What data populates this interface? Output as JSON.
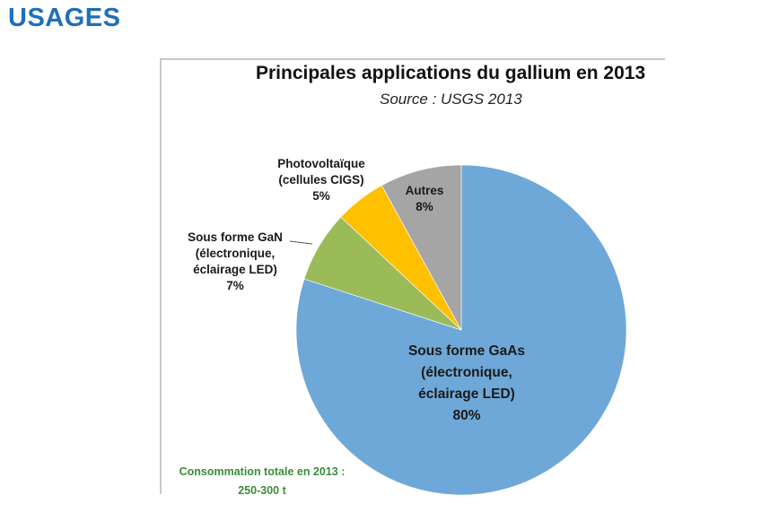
{
  "page": {
    "heading": "USAGES"
  },
  "chart_data": {
    "type": "pie",
    "title": "Principales applications du gallium en 2013",
    "subtitle": "Source : USGS 2013",
    "slices": [
      {
        "name": "sous-forme-gaas",
        "label_lines": [
          "Sous forme GaAs",
          "(électronique,",
          "éclairage LED)"
        ],
        "value": 80,
        "value_label": "80%",
        "color": "#6ea8d8"
      },
      {
        "name": "sous-forme-gan",
        "label_lines": [
          "Sous forme GaN",
          "(électronique,",
          "éclairage LED)"
        ],
        "value": 7,
        "value_label": "7%",
        "color": "#9bbb59"
      },
      {
        "name": "photovoltaique",
        "label_lines": [
          "Photovoltaïque",
          "(cellules CIGS)"
        ],
        "value": 5,
        "value_label": "5%",
        "color": "#ffc000"
      },
      {
        "name": "autres",
        "label_lines": [
          "Autres"
        ],
        "value": 8,
        "value_label": "8%",
        "color": "#a5a5a5"
      }
    ],
    "footnote_lines": [
      "Consommation totale en 2013 :",
      "250-300 t"
    ],
    "footnote_color": "#3a8d3a"
  }
}
